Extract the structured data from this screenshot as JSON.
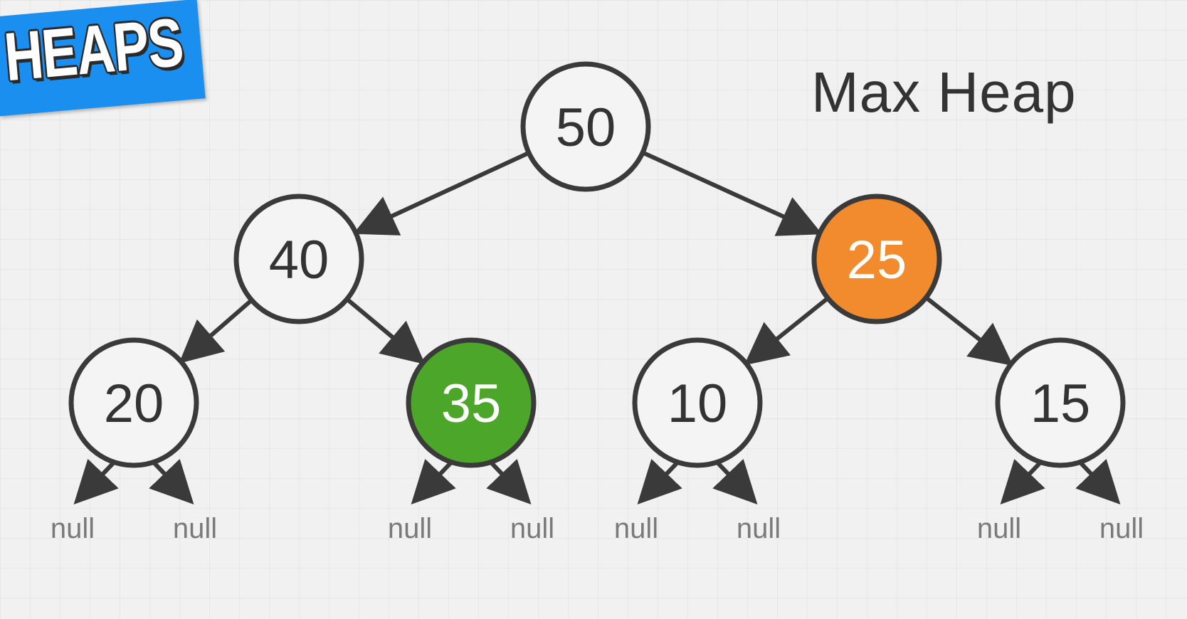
{
  "badge": {
    "text": "HEAPS",
    "color": "#1a8ff0"
  },
  "title": "Max Heap",
  "nodes": [
    {
      "id": "n50",
      "value": "50",
      "highlight": "none"
    },
    {
      "id": "n40",
      "value": "40",
      "highlight": "none"
    },
    {
      "id": "n25",
      "value": "25",
      "highlight": "orange"
    },
    {
      "id": "n20",
      "value": "20",
      "highlight": "none"
    },
    {
      "id": "n35",
      "value": "35",
      "highlight": "green"
    },
    {
      "id": "n10",
      "value": "10",
      "highlight": "none"
    },
    {
      "id": "n15",
      "value": "15",
      "highlight": "none"
    }
  ],
  "edges": [
    {
      "from": "n50",
      "to": "n40"
    },
    {
      "from": "n50",
      "to": "n25"
    },
    {
      "from": "n40",
      "to": "n20"
    },
    {
      "from": "n40",
      "to": "n35"
    },
    {
      "from": "n25",
      "to": "n10"
    },
    {
      "from": "n25",
      "to": "n15"
    }
  ],
  "null_label": "null",
  "colors": {
    "stroke": "#3a3a3a",
    "text": "#333333",
    "null_text": "#7a7a7a",
    "orange": "#f28a2e",
    "green": "#4ca62a",
    "node_fill": "#f4f4f4",
    "highlight_text": "#ffffff"
  }
}
